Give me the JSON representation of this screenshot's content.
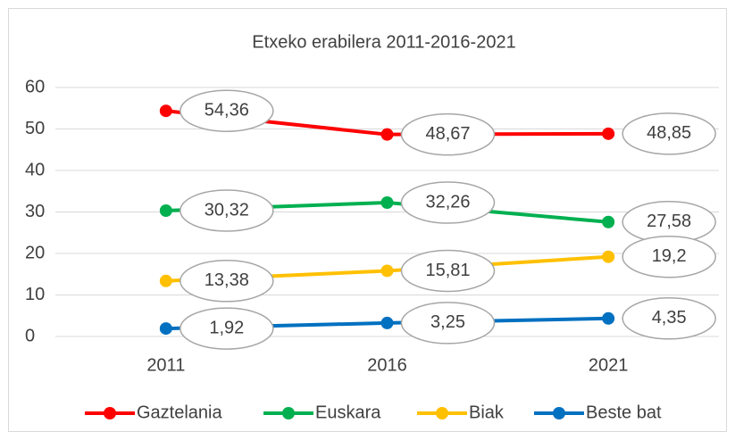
{
  "chart_data": {
    "type": "line",
    "title": "Etxeko erabilera 2011-2016-2021",
    "categories": [
      "2011",
      "2016",
      "2021"
    ],
    "series": [
      {
        "name": "Gaztelania",
        "color": "#ff0000",
        "values": [
          54.36,
          48.67,
          48.85
        ],
        "value_labels": [
          "54,36",
          "48,67",
          "48,85"
        ]
      },
      {
        "name": "Euskara",
        "color": "#00b050",
        "values": [
          30.32,
          32.26,
          27.58
        ],
        "value_labels": [
          "30,32",
          "32,26",
          "27,58"
        ]
      },
      {
        "name": "Biak",
        "color": "#ffc000",
        "values": [
          13.38,
          15.81,
          19.2
        ],
        "value_labels": [
          "13,38",
          "15,81",
          "19,2"
        ]
      },
      {
        "name": "Beste bat",
        "color": "#0070c0",
        "values": [
          1.92,
          3.25,
          4.35
        ],
        "value_labels": [
          "1,92",
          "3,25",
          "4,35"
        ]
      }
    ],
    "ylim": [
      0,
      60
    ],
    "yticks": [
      0,
      10,
      20,
      30,
      40,
      50,
      60
    ],
    "grid": true,
    "legend": "bottom"
  }
}
